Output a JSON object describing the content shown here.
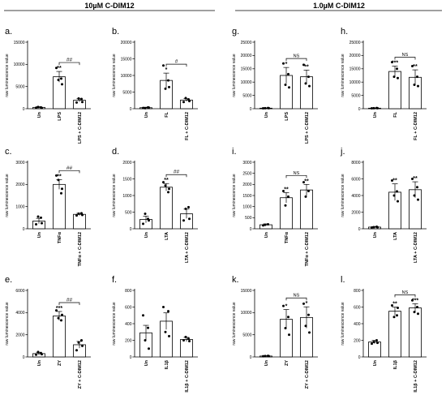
{
  "sections": [
    {
      "id": "left",
      "title": "10µM C-DIM12"
    },
    {
      "id": "right",
      "title": "1.0µM C-DIM12"
    }
  ],
  "chart_data": [
    {
      "panel": "a.",
      "type": "bar",
      "ylabel": "raw luminescence value",
      "ylim": [
        0,
        15000
      ],
      "yticks": [
        0,
        5000,
        10000,
        15000
      ],
      "categories": [
        "Un",
        "LPS",
        "LPS + C-DIM12"
      ],
      "values": [
        300,
        7200,
        1900
      ],
      "errors": [
        150,
        1200,
        350
      ],
      "points": [
        [
          200,
          300,
          400,
          150
        ],
        [
          9200,
          6800,
          6500,
          5500
        ],
        [
          1400,
          2200,
          2300,
          1500
        ]
      ],
      "stars": [
        "",
        "**",
        ""
      ],
      "bracket": {
        "from": 1,
        "to": 2,
        "label": "##"
      }
    },
    {
      "panel": "b.",
      "type": "bar",
      "ylabel": "raw luminescence value",
      "ylim": [
        0,
        20000
      ],
      "yticks": [
        0,
        5000,
        10000,
        15000,
        20000
      ],
      "categories": [
        "Un",
        "FL",
        "FL + C-DIM12"
      ],
      "values": [
        300,
        8500,
        2600
      ],
      "errors": [
        150,
        2200,
        400
      ],
      "points": [
        [
          200,
          400,
          150,
          350
        ],
        [
          13000,
          8500,
          6000,
          6500
        ],
        [
          2000,
          2800,
          3200,
          2300
        ]
      ],
      "stars": [
        "",
        "*",
        ""
      ],
      "bracket": {
        "from": 1,
        "to": 2,
        "label": "#"
      }
    },
    {
      "panel": "c.",
      "type": "bar",
      "ylabel": "raw luminescence value",
      "ylim": [
        0,
        3000
      ],
      "yticks": [
        0,
        1000,
        2000,
        3000
      ],
      "categories": [
        "Un",
        "TNFα",
        "TNFα + C-DIM12"
      ],
      "values": [
        350,
        2000,
        650
      ],
      "errors": [
        120,
        220,
        50
      ],
      "points": [
        [
          200,
          500,
          550,
          250
        ],
        [
          2400,
          1600,
          2200,
          1800
        ],
        [
          600,
          700,
          680,
          620
        ]
      ],
      "stars": [
        "",
        "**",
        ""
      ],
      "bracket": {
        "from": 1,
        "to": 2,
        "label": "##"
      }
    },
    {
      "panel": "d.",
      "type": "bar",
      "ylabel": "raw luminescence value",
      "ylim": [
        0,
        2000
      ],
      "yticks": [
        0,
        500,
        1000,
        1500,
        2000
      ],
      "categories": [
        "Un",
        "LTA",
        "LTA + C-DIM12"
      ],
      "values": [
        280,
        1250,
        450
      ],
      "errors": [
        100,
        110,
        140
      ],
      "points": [
        [
          150,
          300,
          450,
          250
        ],
        [
          1400,
          1100,
          1300,
          1200
        ],
        [
          250,
          650,
          600,
          300
        ]
      ],
      "stars": [
        "",
        "**",
        ""
      ],
      "bracket": {
        "from": 1,
        "to": 2,
        "label": "##"
      }
    },
    {
      "panel": "e.",
      "type": "bar",
      "ylabel": "raw luminescence value",
      "ylim": [
        0,
        6000
      ],
      "yticks": [
        0,
        2000,
        4000,
        6000
      ],
      "categories": [
        "Un",
        "ZY",
        "ZY + C-DIM12"
      ],
      "values": [
        300,
        3700,
        1100
      ],
      "errors": [
        120,
        400,
        300
      ],
      "points": [
        [
          200,
          350,
          450,
          250
        ],
        [
          4200,
          3300,
          3500,
          3800
        ],
        [
          600,
          1500,
          1300,
          1000
        ]
      ],
      "stars": [
        "",
        "***",
        ""
      ],
      "bracket": {
        "from": 1,
        "to": 2,
        "label": "##"
      }
    },
    {
      "panel": "f.",
      "type": "bar",
      "ylabel": "raw luminescence value",
      "ylim": [
        0,
        800
      ],
      "yticks": [
        0,
        200,
        400,
        600,
        800
      ],
      "categories": [
        "Un",
        "IL1β",
        "IL1β + C-DIM12"
      ],
      "values": [
        290,
        430,
        210
      ],
      "errors": [
        90,
        100,
        25
      ],
      "points": [
        [
          500,
          350,
          200,
          100
        ],
        [
          600,
          550,
          300,
          250
        ],
        [
          200,
          220,
          240,
          190
        ]
      ],
      "stars": [
        "",
        "",
        ""
      ],
      "bracket": null
    },
    {
      "panel": "g.",
      "type": "bar",
      "ylabel": "raw luminescence value",
      "ylim": [
        0,
        25000
      ],
      "yticks": [
        0,
        5000,
        10000,
        15000,
        20000,
        25000
      ],
      "categories": [
        "Un",
        "LPS",
        "LPS + C-DIM12"
      ],
      "values": [
        200,
        12500,
        12000
      ],
      "errors": [
        80,
        3000,
        2500
      ],
      "points": [
        [
          150,
          250,
          200,
          180
        ],
        [
          17000,
          13000,
          9000,
          8000
        ],
        [
          16500,
          12000,
          9500,
          8500
        ]
      ],
      "stars": [
        "",
        "*",
        "**"
      ],
      "bracket": {
        "from": 1,
        "to": 2,
        "label": "NS"
      }
    },
    {
      "panel": "h.",
      "type": "bar",
      "ylabel": "raw luminescence value",
      "ylim": [
        0,
        25000
      ],
      "yticks": [
        0,
        5000,
        10000,
        15000,
        20000,
        25000
      ],
      "categories": [
        "Un",
        "FL",
        "FL + C-DIM12"
      ],
      "values": [
        200,
        14000,
        11800
      ],
      "errors": [
        80,
        2000,
        2800
      ],
      "points": [
        [
          150,
          250,
          200,
          180
        ],
        [
          17500,
          15000,
          12000,
          11500
        ],
        [
          16000,
          12000,
          9000,
          8500
        ]
      ],
      "stars": [
        "",
        "***",
        "**"
      ],
      "bracket": {
        "from": 1,
        "to": 2,
        "label": "NS"
      }
    },
    {
      "panel": "i.",
      "type": "bar",
      "ylabel": "raw luminescence value",
      "ylim": [
        0,
        3000
      ],
      "yticks": [
        0,
        500,
        1000,
        1500,
        2000,
        2500,
        3000
      ],
      "categories": [
        "Un",
        "TNFα",
        "TNFα + C-DIM12"
      ],
      "values": [
        180,
        1400,
        1750
      ],
      "errors": [
        40,
        230,
        250
      ],
      "points": [
        [
          150,
          200,
          180
        ],
        [
          1700,
          1450,
          1050
        ],
        [
          2100,
          1700,
          1450
        ]
      ],
      "stars": [
        "",
        "**",
        "**"
      ],
      "bracket": {
        "from": 1,
        "to": 2,
        "label": "NS"
      }
    },
    {
      "panel": "j.",
      "type": "bar",
      "ylabel": "raw luminescence value",
      "ylim": [
        0,
        8000
      ],
      "yticks": [
        0,
        2000,
        4000,
        6000,
        8000
      ],
      "categories": [
        "Un",
        "LTA",
        "LTA + C-DIM12"
      ],
      "values": [
        200,
        4400,
        4700
      ],
      "errors": [
        60,
        1000,
        950
      ],
      "points": [
        [
          150,
          250,
          200,
          180
        ],
        [
          5800,
          4500,
          4000,
          3300
        ],
        [
          6000,
          5000,
          4000,
          3500
        ]
      ],
      "stars": [
        "",
        "**",
        "**"
      ],
      "bracket": null
    },
    {
      "panel": "k.",
      "type": "bar",
      "ylabel": "raw luminescence value",
      "ylim": [
        0,
        15000
      ],
      "yticks": [
        0,
        5000,
        10000,
        15000
      ],
      "categories": [
        "Un",
        "ZY",
        "ZY + C-DIM12"
      ],
      "values": [
        200,
        8500,
        8900
      ],
      "errors": [
        80,
        2200,
        2400
      ],
      "points": [
        [
          150,
          250,
          200,
          180
        ],
        [
          11500,
          9000,
          6500,
          5000
        ],
        [
          12000,
          9500,
          7000,
          5500
        ]
      ],
      "stars": [
        "",
        "*",
        "*"
      ],
      "bracket": {
        "from": 1,
        "to": 2,
        "label": "NS"
      }
    },
    {
      "panel": "l.",
      "type": "bar",
      "ylabel": "raw luminescence value",
      "ylim": [
        0,
        800
      ],
      "yticks": [
        0,
        200,
        400,
        600,
        800
      ],
      "categories": [
        "Un",
        "IL1β",
        "IL1β + C-DIM12"
      ],
      "values": [
        180,
        550,
        590
      ],
      "errors": [
        20,
        50,
        50
      ],
      "points": [
        [
          160,
          200,
          180,
          170
        ],
        [
          620,
          500,
          480,
          590
        ],
        [
          680,
          600,
          540,
          520
        ]
      ],
      "stars": [
        "",
        "**",
        "***"
      ],
      "bracket": {
        "from": 1,
        "to": 2,
        "label": "NS"
      }
    }
  ]
}
